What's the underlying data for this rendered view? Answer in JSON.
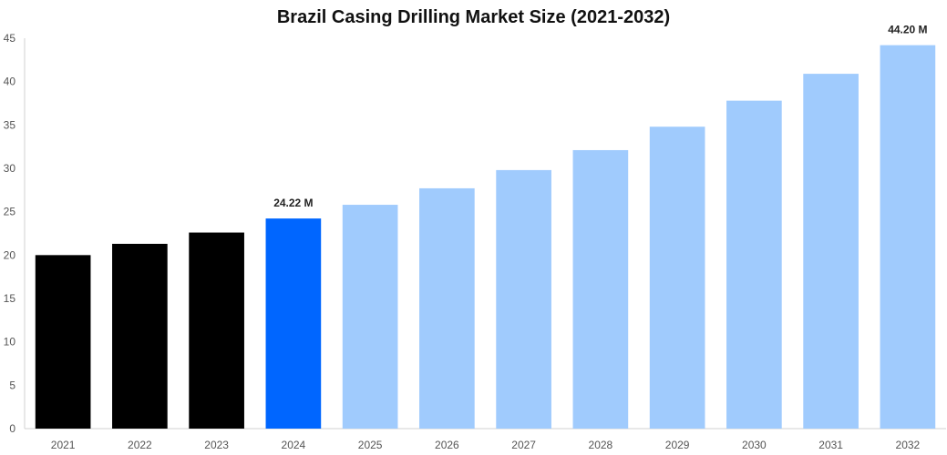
{
  "chart_data": {
    "type": "bar",
    "title": "Brazil Casing Drilling Market Size (2021-2032)",
    "xlabel": "",
    "ylabel": "",
    "categories": [
      "2021",
      "2022",
      "2023",
      "2024",
      "2025",
      "2026",
      "2027",
      "2028",
      "2029",
      "2030",
      "2031",
      "2032"
    ],
    "values": [
      20.0,
      21.3,
      22.6,
      24.22,
      25.8,
      27.7,
      29.8,
      32.1,
      34.8,
      37.8,
      40.9,
      44.2
    ],
    "bar_colors": [
      "#000000",
      "#000000",
      "#000000",
      "#0066ff",
      "#a0cbfd",
      "#a0cbfd",
      "#a0cbfd",
      "#a0cbfd",
      "#a0cbfd",
      "#a0cbfd",
      "#a0cbfd",
      "#a0cbfd"
    ],
    "ylim": [
      0,
      45
    ],
    "yticks": [
      0,
      5,
      10,
      15,
      20,
      25,
      30,
      35,
      40,
      45
    ],
    "grid": false,
    "data_labels": [
      {
        "category": "2024",
        "text": "24.22 M"
      },
      {
        "category": "2032",
        "text": "44.20 M"
      }
    ]
  }
}
